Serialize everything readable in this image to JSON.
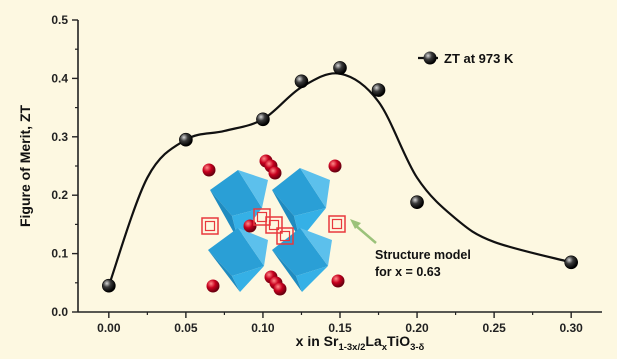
{
  "chart_data": {
    "type": "scatter",
    "title": "",
    "xlabel": {
      "prefix": "x in Sr",
      "sub1": "1-3x/2",
      "mid": "La",
      "sub2": "x",
      "mid2": "TiO",
      "sub3": "3-δ"
    },
    "ylabel": "Figure of Merit, ZT",
    "xlim": [
      -0.02,
      0.32
    ],
    "ylim": [
      0.0,
      0.5
    ],
    "xticks": [
      "0.00",
      "0.05",
      "0.10",
      "0.15",
      "0.20",
      "0.25",
      "0.30"
    ],
    "yticks": [
      "0.0",
      "0.1",
      "0.2",
      "0.3",
      "0.4",
      "0.5"
    ],
    "grid": false,
    "legend_position": "top-right",
    "series": [
      {
        "name": "ZT at 973 K",
        "color": "#111111",
        "points": [
          {
            "x": 0.0,
            "y": 0.045
          },
          {
            "x": 0.05,
            "y": 0.295
          },
          {
            "x": 0.1,
            "y": 0.33
          },
          {
            "x": 0.125,
            "y": 0.395
          },
          {
            "x": 0.15,
            "y": 0.418
          },
          {
            "x": 0.175,
            "y": 0.38
          },
          {
            "x": 0.2,
            "y": 0.188
          },
          {
            "x": 0.3,
            "y": 0.085
          }
        ]
      }
    ],
    "fit_curve": [
      {
        "x": 0.0,
        "y": 0.045
      },
      {
        "x": 0.025,
        "y": 0.23
      },
      {
        "x": 0.05,
        "y": 0.295
      },
      {
        "x": 0.075,
        "y": 0.31
      },
      {
        "x": 0.1,
        "y": 0.33
      },
      {
        "x": 0.125,
        "y": 0.385
      },
      {
        "x": 0.15,
        "y": 0.408
      },
      {
        "x": 0.175,
        "y": 0.36
      },
      {
        "x": 0.2,
        "y": 0.23
      },
      {
        "x": 0.225,
        "y": 0.16
      },
      {
        "x": 0.25,
        "y": 0.12
      },
      {
        "x": 0.3,
        "y": 0.085
      }
    ],
    "annotation": {
      "line1": "Structure model",
      "line2": "for x = 0.63",
      "arrow_color": "#9bc27a"
    },
    "inset": {
      "octahedron_color": "#29a8e0",
      "atom_color": "#c8001e",
      "vacancy_color": "#e8383d"
    }
  }
}
